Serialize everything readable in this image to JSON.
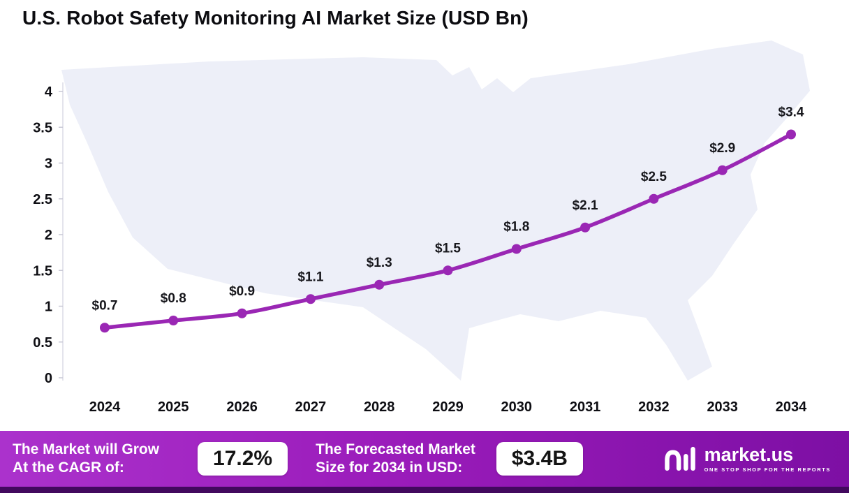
{
  "title": "U.S. Robot Safety Monitoring AI Market Size (USD Bn)",
  "chart_data": {
    "type": "line",
    "categories": [
      "2024",
      "2025",
      "2026",
      "2027",
      "2028",
      "2029",
      "2030",
      "2031",
      "2032",
      "2033",
      "2034"
    ],
    "values": [
      0.7,
      0.8,
      0.9,
      1.1,
      1.3,
      1.5,
      1.8,
      2.1,
      2.5,
      2.9,
      3.4
    ],
    "point_labels": [
      "$0.7",
      "$0.8",
      "$0.9",
      "$1.1",
      "$1.3",
      "$1.5",
      "$1.8",
      "$2.1",
      "$2.5",
      "$2.9",
      "$3.4"
    ],
    "title": "U.S. Robot Safety Monitoring AI Market Size (USD Bn)",
    "xlabel": "",
    "ylabel": "",
    "ylim": [
      0,
      4
    ],
    "y_ticks": [
      0,
      0.5,
      1,
      1.5,
      2,
      2.5,
      3,
      3.5,
      4
    ],
    "y_tick_labels": [
      "0",
      "0.5",
      "1",
      "1.5",
      "2",
      "2.5",
      "3",
      "3.5",
      "4"
    ],
    "line_color": "#9a27b4",
    "marker_color": "#9a27b4",
    "grid": false,
    "legend": "none"
  },
  "footer": {
    "cagr_label_line1": "The Market will Grow",
    "cagr_label_line2": "At the CAGR of:",
    "cagr_value": "17.2%",
    "forecast_label_line1": "The Forecasted Market",
    "forecast_label_line2": "Size for 2034 in USD:",
    "forecast_value": "$3.4B",
    "brand": "market.us",
    "brand_tagline": "ONE STOP SHOP FOR THE REPORTS"
  },
  "colors": {
    "accent_purple": "#9a27b4",
    "banner_gradient_start": "#ab32cc",
    "banner_gradient_end": "#7d0fa4",
    "footer_strip": "#42095e",
    "map_fill": "#edeff8"
  }
}
